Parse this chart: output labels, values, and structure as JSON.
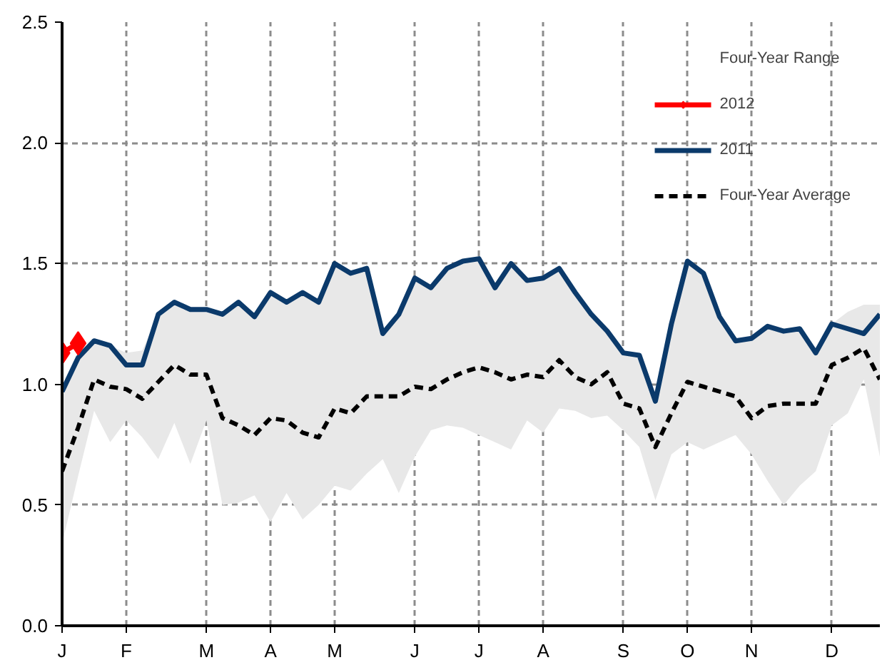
{
  "chart_data": {
    "type": "line",
    "categories": [
      "J",
      null,
      null,
      null,
      "F",
      null,
      null,
      null,
      null,
      "M",
      null,
      null,
      null,
      "A",
      null,
      null,
      null,
      "M",
      null,
      null,
      null,
      null,
      "J",
      null,
      null,
      null,
      "J",
      null,
      null,
      null,
      "A",
      null,
      null,
      null,
      null,
      "S",
      null,
      null,
      null,
      "O",
      null,
      null,
      null,
      "N",
      null,
      null,
      null,
      null,
      "D",
      null,
      null,
      null
    ],
    "ylim": [
      0,
      2.5
    ],
    "yticks": [
      {
        "value": 0,
        "label": "0.0"
      },
      {
        "value": 0.5,
        "label": "0.5"
      },
      {
        "value": 1,
        "label": "1.0"
      },
      {
        "value": 1.5,
        "label": "1.5"
      },
      {
        "value": 2,
        "label": "2.0"
      },
      {
        "value": 2.5,
        "label": "2.5"
      }
    ],
    "grid": true,
    "legend": "top right",
    "annotations": [
      "Four-Year Range"
    ],
    "series": [
      {
        "name": "2012",
        "color": "#ff0000",
        "marker": "diamond",
        "values": [
          1.13,
          1.17,
          null,
          null,
          null,
          null,
          null,
          null,
          null,
          null,
          null,
          null,
          null,
          null,
          null,
          null,
          null,
          null,
          null,
          null,
          null,
          null,
          null,
          null,
          null,
          null,
          null,
          null,
          null,
          null,
          null,
          null,
          null,
          null,
          null,
          null,
          null,
          null,
          null,
          null,
          null,
          null,
          null,
          null,
          null,
          null,
          null,
          null,
          null,
          null,
          null,
          null
        ]
      },
      {
        "name": "2011",
        "color": "#0b3a6b",
        "values": [
          0.97,
          1.11,
          1.18,
          1.16,
          1.08,
          1.08,
          1.29,
          1.34,
          1.31,
          1.31,
          1.29,
          1.34,
          1.28,
          1.38,
          1.34,
          1.38,
          1.34,
          1.5,
          1.46,
          1.48,
          1.21,
          1.29,
          1.44,
          1.4,
          1.48,
          1.51,
          1.52,
          1.4,
          1.5,
          1.43,
          1.44,
          1.48,
          1.38,
          1.29,
          1.22,
          1.13,
          1.12,
          0.93,
          1.25,
          1.51,
          1.46,
          1.28,
          1.18,
          1.19,
          1.24,
          1.22,
          1.23,
          1.13,
          1.25,
          1.23,
          1.21,
          1.29
        ]
      },
      {
        "name": "Four-Year Average",
        "color": "#000000",
        "line_style": "dashed",
        "upper": [
          0.99,
          1.11,
          1.18,
          1.16,
          1.13,
          1.14,
          1.29,
          1.34,
          1.31,
          1.31,
          1.29,
          1.34,
          1.28,
          1.38,
          1.34,
          1.38,
          1.34,
          1.5,
          1.46,
          1.48,
          1.21,
          1.29,
          1.44,
          1.4,
          1.48,
          1.51,
          1.52,
          1.4,
          1.5,
          1.43,
          1.44,
          1.48,
          1.38,
          1.29,
          1.22,
          1.13,
          1.12,
          0.93,
          1.25,
          1.51,
          1.46,
          1.28,
          1.18,
          1.19,
          1.24,
          1.22,
          1.23,
          1.13,
          1.25,
          1.3,
          1.33,
          1.33
        ],
        "lower": [
          0.34,
          0.62,
          0.89,
          0.76,
          0.85,
          0.78,
          0.69,
          0.84,
          0.67,
          0.85,
          0.5,
          0.51,
          0.54,
          0.43,
          0.55,
          0.44,
          0.5,
          0.58,
          0.56,
          0.63,
          0.69,
          0.55,
          0.7,
          0.81,
          0.83,
          0.82,
          0.79,
          0.76,
          0.73,
          0.85,
          0.8,
          0.9,
          0.89,
          0.86,
          0.87,
          0.81,
          0.74,
          0.52,
          0.71,
          0.76,
          0.73,
          0.76,
          0.79,
          0.71,
          0.6,
          0.5,
          0.58,
          0.64,
          0.83,
          0.88,
          1.02,
          0.7
        ],
        "values": [
          0.64,
          0.82,
          1.02,
          0.99,
          0.98,
          0.94,
          1.01,
          1.08,
          1.04,
          1.04,
          0.86,
          0.83,
          0.79,
          0.86,
          0.85,
          0.8,
          0.78,
          0.9,
          0.88,
          0.95,
          0.95,
          0.95,
          0.99,
          0.98,
          1.02,
          1.05,
          1.07,
          1.05,
          1.02,
          1.04,
          1.03,
          1.1,
          1.03,
          1.0,
          1.05,
          0.92,
          0.9,
          0.74,
          0.88,
          1.01,
          0.99,
          0.97,
          0.95,
          0.86,
          0.91,
          0.92,
          0.92,
          0.92,
          1.08,
          1.11,
          1.15,
          1.02
        ]
      }
    ]
  }
}
